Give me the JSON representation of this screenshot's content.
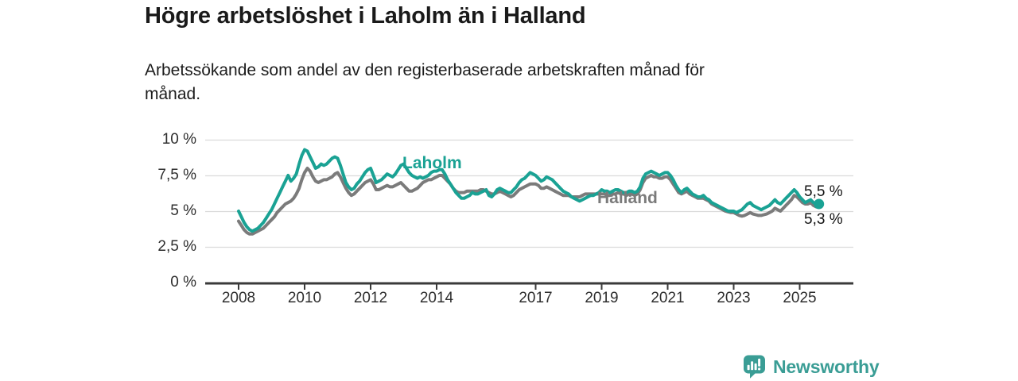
{
  "title": "Högre arbetslöshet i Laholm än i Halland",
  "subtitle": "Arbetssökande som andel av den registerbaserade arbetskraften månad för månad.",
  "branding": {
    "logo_text": "Newsworthy",
    "logo_icon": "bar-chart-speech-bubble-icon",
    "brand_color": "#3a9d95"
  },
  "colors": {
    "laholm": "#1aa294",
    "halland": "#7b7b7b",
    "grid": "#dbdbdb",
    "axis": "#3a3a3a",
    "text": "#1a1a1a"
  },
  "chart_data": {
    "type": "line",
    "title": "Högre arbetslöshet i Laholm än i Halland",
    "subtitle": "Arbetssökande som andel av den registerbaserade arbetskraften månad för månad.",
    "frequency": "monthly",
    "x_domain": {
      "start": "2008-01",
      "end": "2025-08"
    },
    "ylim": [
      0,
      10.5
    ],
    "grid": "horizontal",
    "y_ticks": [
      0,
      2.5,
      5,
      7.5,
      10
    ],
    "y_tick_labels": [
      "0 %",
      "2,5 %",
      "5 %",
      "7,5 %",
      "10 %"
    ],
    "x_ticks": [
      2008,
      2010,
      2012,
      2014,
      2017,
      2019,
      2021,
      2023,
      2025
    ],
    "x_tick_labels": [
      "2008",
      "2010",
      "2012",
      "2014",
      "2017",
      "2019",
      "2021",
      "2023",
      "2025"
    ],
    "series": [
      {
        "name": "Laholm",
        "color": "#1aa294",
        "end_label": "5,5 %",
        "end_value": 5.5,
        "values": [
          5.0,
          4.6,
          4.2,
          3.9,
          3.7,
          3.6,
          3.7,
          3.8,
          4.0,
          4.2,
          4.5,
          4.8,
          5.1,
          5.5,
          5.9,
          6.3,
          6.7,
          7.1,
          7.5,
          7.1,
          7.3,
          7.6,
          8.3,
          8.9,
          9.3,
          9.2,
          8.8,
          8.4,
          8.0,
          8.1,
          8.3,
          8.2,
          8.3,
          8.5,
          8.7,
          8.8,
          8.7,
          8.2,
          7.6,
          7.0,
          6.7,
          6.5,
          6.6,
          6.9,
          7.1,
          7.4,
          7.7,
          7.9,
          8.0,
          7.5,
          7.0,
          7.1,
          7.2,
          7.4,
          7.6,
          7.5,
          7.4,
          7.6,
          7.9,
          8.2,
          8.3,
          8.0,
          7.7,
          7.5,
          7.4,
          7.3,
          7.4,
          7.3,
          7.4,
          7.5,
          7.7,
          7.8,
          7.8,
          7.9,
          7.9,
          7.6,
          7.2,
          6.9,
          6.6,
          6.3,
          6.1,
          5.9,
          5.9,
          6.0,
          6.1,
          6.3,
          6.2,
          6.2,
          6.3,
          6.4,
          6.5,
          6.1,
          6.0,
          6.2,
          6.5,
          6.6,
          6.5,
          6.4,
          6.3,
          6.3,
          6.5,
          6.7,
          7.0,
          7.2,
          7.3,
          7.5,
          7.7,
          7.6,
          7.5,
          7.3,
          7.1,
          7.2,
          7.4,
          7.3,
          7.2,
          7.0,
          6.8,
          6.6,
          6.4,
          6.3,
          6.2,
          6.0,
          5.9,
          5.8,
          5.7,
          5.8,
          5.9,
          6.0,
          6.1,
          6.1,
          6.2,
          6.3,
          6.5,
          6.4,
          6.4,
          6.3,
          6.4,
          6.5,
          6.5,
          6.4,
          6.3,
          6.3,
          6.4,
          6.4,
          6.3,
          6.4,
          6.7,
          7.3,
          7.6,
          7.7,
          7.8,
          7.7,
          7.6,
          7.5,
          7.6,
          7.7,
          7.7,
          7.5,
          7.2,
          6.8,
          6.5,
          6.3,
          6.5,
          6.6,
          6.4,
          6.2,
          6.1,
          6.0,
          6.0,
          6.1,
          5.9,
          5.8,
          5.6,
          5.5,
          5.4,
          5.3,
          5.2,
          5.1,
          5.0,
          5.0,
          5.0,
          4.9,
          5.0,
          5.1,
          5.3,
          5.5,
          5.6,
          5.4,
          5.3,
          5.2,
          5.1,
          5.2,
          5.3,
          5.4,
          5.6,
          5.8,
          5.6,
          5.5,
          5.7,
          5.9,
          6.1,
          6.3,
          6.5,
          6.3,
          6.0,
          5.8,
          5.6,
          5.7,
          5.8,
          5.6,
          5.5,
          5.5
        ]
      },
      {
        "name": "Halland",
        "color": "#7b7b7b",
        "end_label": "5,3 %",
        "end_value": 5.3,
        "values": [
          4.3,
          4.0,
          3.7,
          3.5,
          3.4,
          3.4,
          3.5,
          3.6,
          3.7,
          3.8,
          4.0,
          4.2,
          4.4,
          4.6,
          4.9,
          5.1,
          5.3,
          5.5,
          5.6,
          5.7,
          5.9,
          6.2,
          6.6,
          7.2,
          7.7,
          8.0,
          7.8,
          7.4,
          7.1,
          7.0,
          7.1,
          7.2,
          7.2,
          7.3,
          7.4,
          7.6,
          7.7,
          7.4,
          7.0,
          6.6,
          6.3,
          6.1,
          6.2,
          6.4,
          6.6,
          6.8,
          7.0,
          7.1,
          7.2,
          6.9,
          6.5,
          6.5,
          6.6,
          6.7,
          6.8,
          6.7,
          6.7,
          6.8,
          6.9,
          7.0,
          6.8,
          6.6,
          6.4,
          6.4,
          6.5,
          6.6,
          6.8,
          7.0,
          7.1,
          7.2,
          7.2,
          7.3,
          7.4,
          7.5,
          7.5,
          7.3,
          7.1,
          6.9,
          6.6,
          6.4,
          6.3,
          6.3,
          6.3,
          6.4,
          6.4,
          6.4,
          6.4,
          6.4,
          6.5,
          6.5,
          6.4,
          6.3,
          6.2,
          6.2,
          6.3,
          6.4,
          6.3,
          6.2,
          6.1,
          6.0,
          6.1,
          6.3,
          6.5,
          6.6,
          6.7,
          6.8,
          6.9,
          6.9,
          6.9,
          6.8,
          6.6,
          6.6,
          6.7,
          6.6,
          6.5,
          6.4,
          6.3,
          6.2,
          6.1,
          6.1,
          6.1,
          6.0,
          6.0,
          6.0,
          6.0,
          6.1,
          6.2,
          6.2,
          6.2,
          6.2,
          6.2,
          6.2,
          6.2,
          6.2,
          6.1,
          6.1,
          6.2,
          6.2,
          6.3,
          6.2,
          6.2,
          6.1,
          6.2,
          6.2,
          6.1,
          6.2,
          6.5,
          7.0,
          7.3,
          7.4,
          7.5,
          7.4,
          7.4,
          7.3,
          7.3,
          7.4,
          7.4,
          7.2,
          6.9,
          6.6,
          6.3,
          6.2,
          6.3,
          6.4,
          6.2,
          6.1,
          6.0,
          5.9,
          5.9,
          5.9,
          5.8,
          5.7,
          5.5,
          5.4,
          5.3,
          5.2,
          5.1,
          5.0,
          4.95,
          4.9,
          4.9,
          4.8,
          4.7,
          4.65,
          4.7,
          4.8,
          4.9,
          4.8,
          4.75,
          4.7,
          4.7,
          4.75,
          4.8,
          4.9,
          5.0,
          5.2,
          5.1,
          5.0,
          5.2,
          5.4,
          5.6,
          5.8,
          6.1,
          6.0,
          5.8,
          5.6,
          5.5,
          5.5,
          5.6,
          5.4,
          5.3,
          5.3
        ]
      }
    ]
  }
}
